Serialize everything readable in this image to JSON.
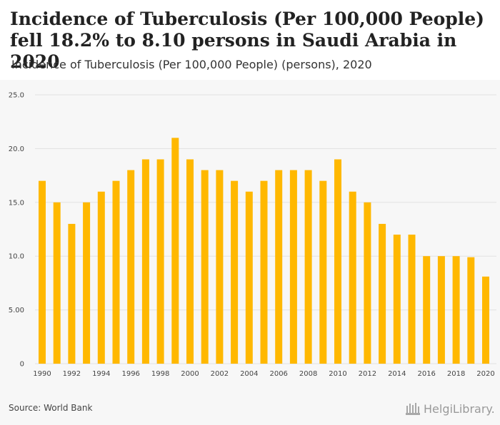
{
  "header": {
    "title": "Incidence of Tuberculosis (Per 100,000 People) fell 18.2% to 8.10 persons in Saudi Arabia in 2020",
    "subtitle": "Incidence of Tuberculosis (Per 100,000 People) (persons), 2020"
  },
  "footer": {
    "source": "Source: World Bank",
    "logo_text": "HelgiLibrary."
  },
  "colors": {
    "bar": "#ffb800",
    "grid": "#e2e2e2",
    "panel": "#f7f7f7",
    "tick_text": "#444444"
  },
  "chart_data": {
    "type": "bar",
    "title": "Incidence of Tuberculosis (Per 100,000 People) (persons), 2020",
    "xlabel": "",
    "ylabel": "",
    "categories": [
      "1990",
      "1991",
      "1992",
      "1993",
      "1994",
      "1995",
      "1996",
      "1997",
      "1998",
      "1999",
      "2000",
      "2001",
      "2002",
      "2003",
      "2004",
      "2005",
      "2006",
      "2007",
      "2008",
      "2009",
      "2010",
      "2011",
      "2012",
      "2013",
      "2014",
      "2015",
      "2016",
      "2017",
      "2018",
      "2019",
      "2020"
    ],
    "values": [
      17,
      15,
      13,
      15,
      16,
      17,
      18,
      19,
      19,
      21,
      19,
      18,
      18,
      17,
      16,
      17,
      18,
      18,
      18,
      17,
      19,
      16,
      15,
      13,
      12,
      12,
      10,
      10,
      10,
      9.9,
      8.1
    ],
    "x_tick_labels": [
      "1990",
      "1992",
      "1994",
      "1996",
      "1998",
      "2000",
      "2002",
      "2004",
      "2006",
      "2008",
      "2010",
      "2012",
      "2014",
      "2016",
      "2018",
      "2020"
    ],
    "y_ticks": [
      "0",
      "5.00",
      "10.0",
      "15.0",
      "20.0",
      "25.0"
    ],
    "ylim": [
      0,
      25
    ],
    "grid": true,
    "legend": "none"
  }
}
